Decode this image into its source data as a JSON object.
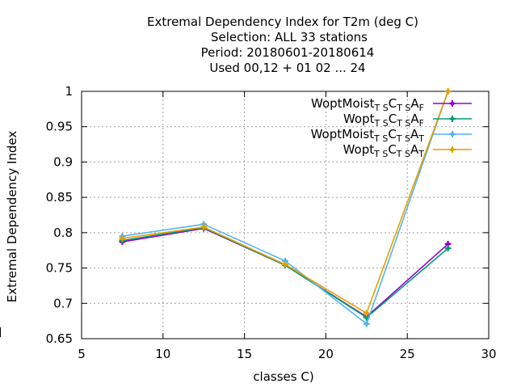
{
  "chart_data": {
    "type": "line",
    "title_lines": [
      "Extremal Dependency Index  for T2m (deg C)",
      "Selection: ALL     33 stations",
      "Period: 20180601-20180614",
      "Used  00,12  + 01 02 ... 24"
    ],
    "xlabel": "classes C)",
    "ylabel": "Extremal Dependency Index",
    "xlim": [
      5,
      30
    ],
    "ylim": [
      0.65,
      1.0
    ],
    "xticks": [
      5,
      10,
      15,
      20,
      25,
      30
    ],
    "yticks": [
      0.65,
      0.7,
      0.75,
      0.8,
      0.85,
      0.9,
      0.95,
      1.0
    ],
    "xtick_labels": [
      "5",
      "10",
      "15",
      "20",
      "25",
      "30"
    ],
    "ytick_labels": [
      "0.65",
      "0.7",
      "0.75",
      "0.8",
      "0.85",
      "0.9",
      "0.95",
      "1"
    ],
    "grid": true,
    "legend_position": "top-right",
    "x": [
      7.5,
      12.5,
      17.5,
      22.5,
      27.5
    ],
    "series": [
      {
        "name_main": "WoptMoist",
        "name_sub1": "T S",
        "name_mid": "C",
        "name_sub2": "T S",
        "name_end": "A",
        "name_sub3": "F",
        "color": "#9400d3",
        "values": [
          0.787,
          0.806,
          0.754,
          0.681,
          0.784
        ]
      },
      {
        "name_main": "Wopt",
        "name_sub1": "T S",
        "name_mid": "C",
        "name_sub2": "T S",
        "name_end": "A",
        "name_sub3": "F",
        "color": "#009e73",
        "values": [
          0.789,
          0.807,
          0.754,
          0.68,
          0.778
        ]
      },
      {
        "name_main": "WoptMoist",
        "name_sub1": "T S",
        "name_mid": "C",
        "name_sub2": "T S",
        "name_end": "A",
        "name_sub3": "T",
        "color": "#56b4e9",
        "values": [
          0.795,
          0.812,
          0.76,
          0.671,
          1.0
        ]
      },
      {
        "name_main": "Wopt",
        "name_sub1": "T S",
        "name_mid": "C",
        "name_sub2": "T S",
        "name_end": "A",
        "name_sub3": "T",
        "color": "#e69f00",
        "values": [
          0.792,
          0.808,
          0.755,
          0.686,
          1.0
        ]
      }
    ]
  }
}
